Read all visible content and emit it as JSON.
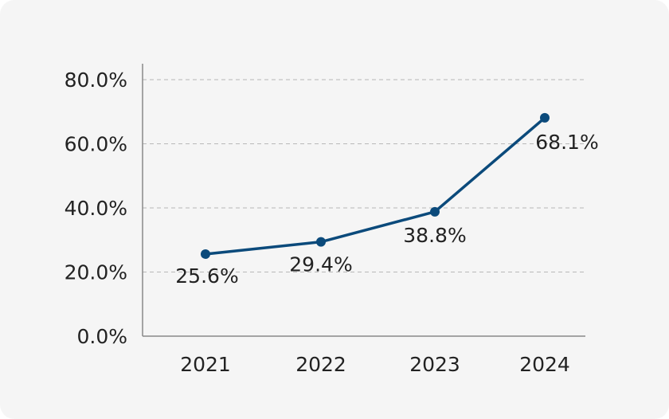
{
  "chart_data": {
    "type": "line",
    "title": "",
    "xlabel": "",
    "ylabel": "",
    "categories": [
      "2021",
      "2022",
      "2023",
      "2024"
    ],
    "series": [
      {
        "values": [
          25.6,
          29.4,
          38.8,
          68.1
        ],
        "data_labels": [
          "25.6%",
          "29.4%",
          "38.8%",
          "68.1%"
        ],
        "color": "#0b4a7b",
        "marker": "circle"
      }
    ],
    "y_ticks": [
      0,
      20,
      40,
      60,
      80
    ],
    "y_tick_labels": [
      "0.0%",
      "20.0%",
      "40.0%",
      "60.0%",
      "80.0%"
    ],
    "ylim": [
      0,
      80
    ],
    "grid": "horizontal dashed",
    "legend": "none",
    "colors": {
      "line": "#0b4a7b",
      "grid": "#b8b8b8",
      "axis": "#8a8a8a",
      "background": "#f5f5f5",
      "text": "#222222"
    }
  }
}
